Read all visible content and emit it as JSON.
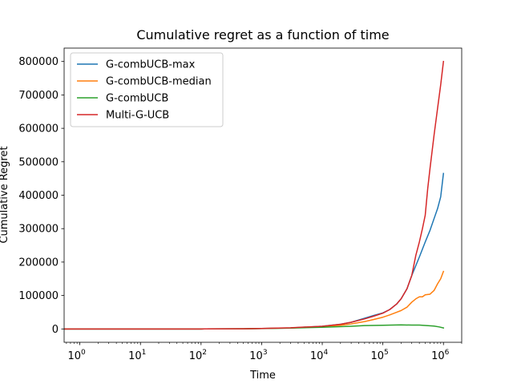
{
  "chart_data": {
    "type": "line",
    "title": "Cumulative regret as a function of time",
    "xlabel": "Time",
    "ylabel": "Cumulative Regret",
    "xscale": "log",
    "xlim": [
      0.55,
      2000000
    ],
    "ylim": [
      -40000,
      840000
    ],
    "grid": false,
    "legend_position": "top-left",
    "x_ticks": [
      {
        "value": 1,
        "base": "10",
        "exp": "0"
      },
      {
        "value": 10,
        "base": "10",
        "exp": "1"
      },
      {
        "value": 100,
        "base": "10",
        "exp": "2"
      },
      {
        "value": 1000,
        "base": "10",
        "exp": "3"
      },
      {
        "value": 10000,
        "base": "10",
        "exp": "4"
      },
      {
        "value": 100000,
        "base": "10",
        "exp": "5"
      },
      {
        "value": 1000000,
        "base": "10",
        "exp": "6"
      }
    ],
    "y_ticks": [
      {
        "value": 0,
        "label": "0"
      },
      {
        "value": 100000,
        "label": "100000"
      },
      {
        "value": 200000,
        "label": "200000"
      },
      {
        "value": 300000,
        "label": "300000"
      },
      {
        "value": 400000,
        "label": "400000"
      },
      {
        "value": 500000,
        "label": "500000"
      },
      {
        "value": 600000,
        "label": "600000"
      },
      {
        "value": 700000,
        "label": "700000"
      },
      {
        "value": 800000,
        "label": "800000"
      }
    ],
    "series": [
      {
        "name": "G-combUCB-max",
        "color": "#1f77b4",
        "x": [
          0.5,
          1,
          10,
          100,
          500,
          1000,
          3000,
          10000,
          20000,
          30000,
          50000,
          70000,
          100000,
          130000,
          170000,
          200000,
          250000,
          300000,
          400000,
          500000,
          600000,
          700000,
          800000,
          900000,
          1000000
        ],
        "y": [
          0,
          0,
          0,
          0,
          500,
          1500,
          3000,
          8000,
          14000,
          20000,
          32000,
          40000,
          48000,
          58000,
          75000,
          90000,
          120000,
          160000,
          215000,
          260000,
          295000,
          330000,
          360000,
          395000,
          465000
        ]
      },
      {
        "name": "G-combUCB-median",
        "color": "#ff7f0e",
        "x": [
          0.5,
          1,
          10,
          100,
          500,
          1000,
          3000,
          10000,
          20000,
          30000,
          50000,
          70000,
          100000,
          130000,
          170000,
          200000,
          250000,
          300000,
          350000,
          400000,
          450000,
          500000,
          600000,
          700000,
          800000,
          900000,
          1000000
        ],
        "y": [
          0,
          0,
          0,
          0,
          500,
          1500,
          3000,
          7000,
          11000,
          15000,
          22000,
          28000,
          35000,
          42000,
          50000,
          55000,
          65000,
          80000,
          90000,
          96000,
          96000,
          102000,
          104000,
          115000,
          135000,
          150000,
          172000
        ]
      },
      {
        "name": "G-combUCB",
        "color": "#2ca02c",
        "x": [
          0.5,
          1,
          10,
          100,
          500,
          1000,
          3000,
          10000,
          30000,
          50000,
          100000,
          200000,
          300000,
          400000,
          500000,
          700000,
          850000,
          1000000
        ],
        "y": [
          0,
          0,
          0,
          0,
          500,
          1200,
          2500,
          5000,
          8000,
          10000,
          11000,
          12000,
          11500,
          11500,
          10500,
          8500,
          6000,
          3000
        ]
      },
      {
        "name": "Multi-G-UCB",
        "color": "#d62728",
        "x": [
          0.5,
          1,
          10,
          100,
          500,
          1000,
          3000,
          10000,
          20000,
          30000,
          50000,
          70000,
          100000,
          130000,
          170000,
          200000,
          250000,
          300000,
          350000,
          400000,
          450000,
          500000,
          550000,
          600000,
          700000,
          800000,
          900000,
          1000000
        ],
        "y": [
          0,
          0,
          0,
          0,
          500,
          1500,
          3500,
          8000,
          14000,
          20000,
          30000,
          38000,
          47000,
          58000,
          75000,
          90000,
          120000,
          160000,
          220000,
          260000,
          300000,
          340000,
          420000,
          480000,
          580000,
          660000,
          730000,
          800000
        ]
      }
    ]
  }
}
